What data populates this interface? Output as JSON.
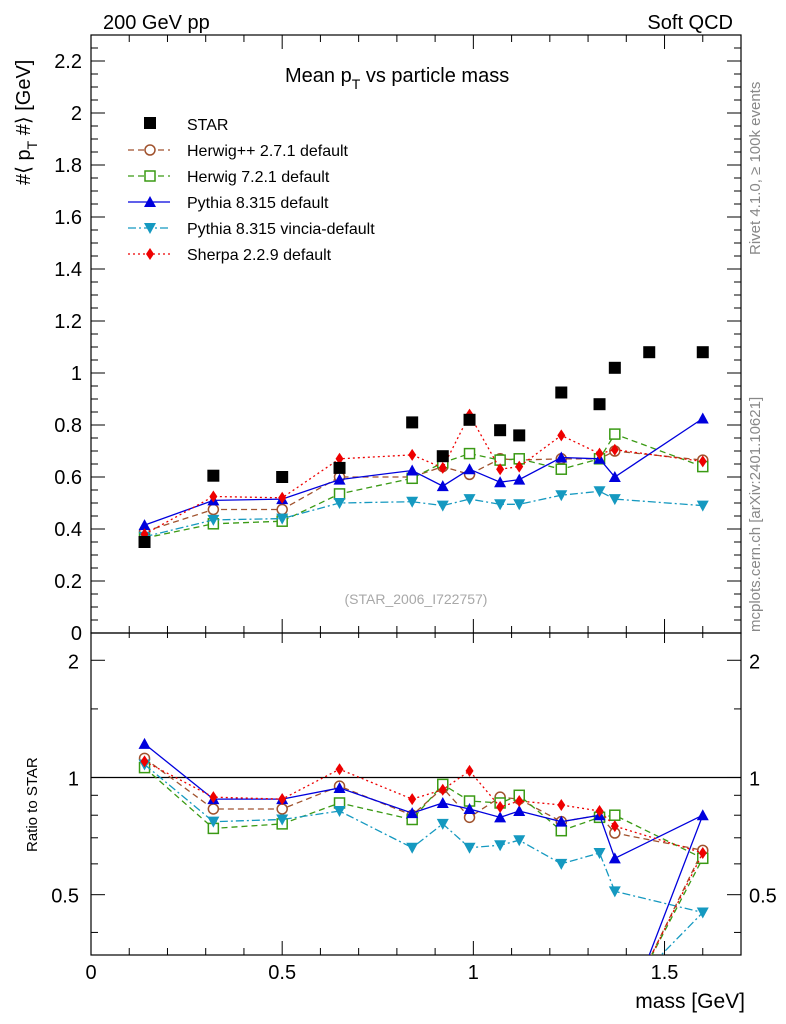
{
  "header": {
    "left": "200 GeV pp",
    "right": "Soft QCD"
  },
  "side": {
    "rivet": "Rivet 4.1.0, ≥ 100k events",
    "mcplots": "mcplots.cern.ch [arXiv:2401.10621]"
  },
  "watermark": "(STAR_2006_I722757)",
  "colors": {
    "star": "#000000",
    "herwig271": "#a0522d",
    "herwig721": "#3a9a14",
    "pythia": "#0000dd",
    "vincia": "#1599c0",
    "sherpa": "#ee0000"
  },
  "chart_data": {
    "type": "scatter",
    "title": "Mean p",
    "title_sub": "T",
    "title_rest": " vs particle mass",
    "xlabel": "mass [GeV]",
    "ylabel_main": "#⟨ p",
    "ylabel_sub": "T",
    "ylabel_rest": " #⟩ [GeV]",
    "ylabel_ratio": "Ratio to STAR",
    "xlim": [
      0,
      1.7
    ],
    "ylim_main": [
      0,
      2.3
    ],
    "ylim_ratio": [
      0.35,
      2.35
    ],
    "x_ticks": [
      "0",
      "0.5",
      "1",
      "1.5"
    ],
    "y_ticks_main": [
      "0",
      "0.2",
      "0.4",
      "0.6",
      "0.8",
      "1",
      "1.2",
      "1.4",
      "1.6",
      "1.8",
      "2",
      "2.2"
    ],
    "y_ticks_ratio": [
      "0.5",
      "1",
      "2"
    ],
    "data": {
      "name": "STAR",
      "x": [
        0.14,
        0.32,
        0.5,
        0.65,
        0.84,
        0.92,
        0.99,
        1.07,
        1.12,
        1.23,
        1.33,
        1.37,
        1.46,
        1.6
      ],
      "y": [
        0.35,
        0.605,
        0.6,
        0.635,
        0.81,
        0.68,
        0.82,
        0.78,
        0.76,
        0.925,
        0.88,
        1.02,
        1.08,
        1.08
      ]
    },
    "series": [
      {
        "name": "Herwig++ 2.7.1 default",
        "color": "#a0522d",
        "marker": "open-circle",
        "dash": "6,4",
        "x": [
          0.14,
          0.32,
          0.5,
          0.65,
          0.84,
          0.92,
          0.99,
          1.07,
          1.12,
          1.23,
          1.33,
          1.37,
          1.6
        ],
        "y": [
          0.39,
          0.475,
          0.475,
          0.6,
          0.6,
          0.64,
          0.61,
          0.67,
          0.665,
          0.67,
          0.67,
          0.7,
          0.665
        ],
        "ratio": [
          1.12,
          0.83,
          0.83,
          0.95,
          0.8,
          0.94,
          0.79,
          0.89,
          0.88,
          0.77,
          0.8,
          0.72,
          0.65
        ]
      },
      {
        "name": "Herwig 7.2.1 default",
        "color": "#3a9a14",
        "marker": "open-square",
        "dash": "6,4",
        "x": [
          0.14,
          0.32,
          0.5,
          0.65,
          0.84,
          0.92,
          0.99,
          1.07,
          1.12,
          1.23,
          1.33,
          1.37,
          1.6
        ],
        "y": [
          0.365,
          0.42,
          0.43,
          0.535,
          0.595,
          0.655,
          0.69,
          0.665,
          0.67,
          0.63,
          0.67,
          0.765,
          0.64
        ],
        "ratio": [
          1.06,
          0.74,
          0.76,
          0.86,
          0.78,
          0.96,
          0.87,
          0.86,
          0.9,
          0.73,
          0.79,
          0.8,
          0.62
        ]
      },
      {
        "name": "Pythia 8.315 default",
        "color": "#0000dd",
        "marker": "triangle-up",
        "dash": "",
        "x": [
          0.14,
          0.32,
          0.5,
          0.65,
          0.84,
          0.92,
          0.99,
          1.07,
          1.12,
          1.23,
          1.33,
          1.37,
          1.6
        ],
        "y": [
          0.415,
          0.51,
          0.515,
          0.59,
          0.625,
          0.565,
          0.63,
          0.58,
          0.59,
          0.675,
          0.67,
          0.6,
          0.825
        ],
        "ratio": [
          1.22,
          0.88,
          0.88,
          0.94,
          0.81,
          0.86,
          0.83,
          0.79,
          0.82,
          0.77,
          0.8,
          0.62,
          0.8
        ]
      },
      {
        "name": "Pythia 8.315 vincia-default",
        "color": "#1599c0",
        "marker": "triangle-down",
        "dash": "8,3,2,3",
        "x": [
          0.14,
          0.32,
          0.5,
          0.65,
          0.84,
          0.92,
          0.99,
          1.07,
          1.12,
          1.23,
          1.33,
          1.37,
          1.6
        ],
        "y": [
          0.37,
          0.435,
          0.44,
          0.5,
          0.505,
          0.49,
          0.515,
          0.495,
          0.495,
          0.53,
          0.545,
          0.515,
          0.49
        ],
        "ratio": [
          1.08,
          0.77,
          0.78,
          0.82,
          0.66,
          0.76,
          0.66,
          0.67,
          0.69,
          0.6,
          0.64,
          0.51,
          0.45
        ]
      },
      {
        "name": "Sherpa 2.2.9 default",
        "color": "#ee0000",
        "marker": "diamond",
        "dash": "2,3",
        "x": [
          0.14,
          0.32,
          0.5,
          0.65,
          0.84,
          0.92,
          0.99,
          1.07,
          1.12,
          1.23,
          1.33,
          1.37,
          1.6
        ],
        "y": [
          0.38,
          0.525,
          0.52,
          0.67,
          0.685,
          0.635,
          0.84,
          0.63,
          0.64,
          0.76,
          0.69,
          0.705,
          0.66
        ],
        "ratio": [
          1.1,
          0.89,
          0.88,
          1.05,
          0.88,
          0.93,
          1.04,
          0.84,
          0.87,
          0.85,
          0.82,
          0.75,
          0.64
        ]
      }
    ]
  }
}
